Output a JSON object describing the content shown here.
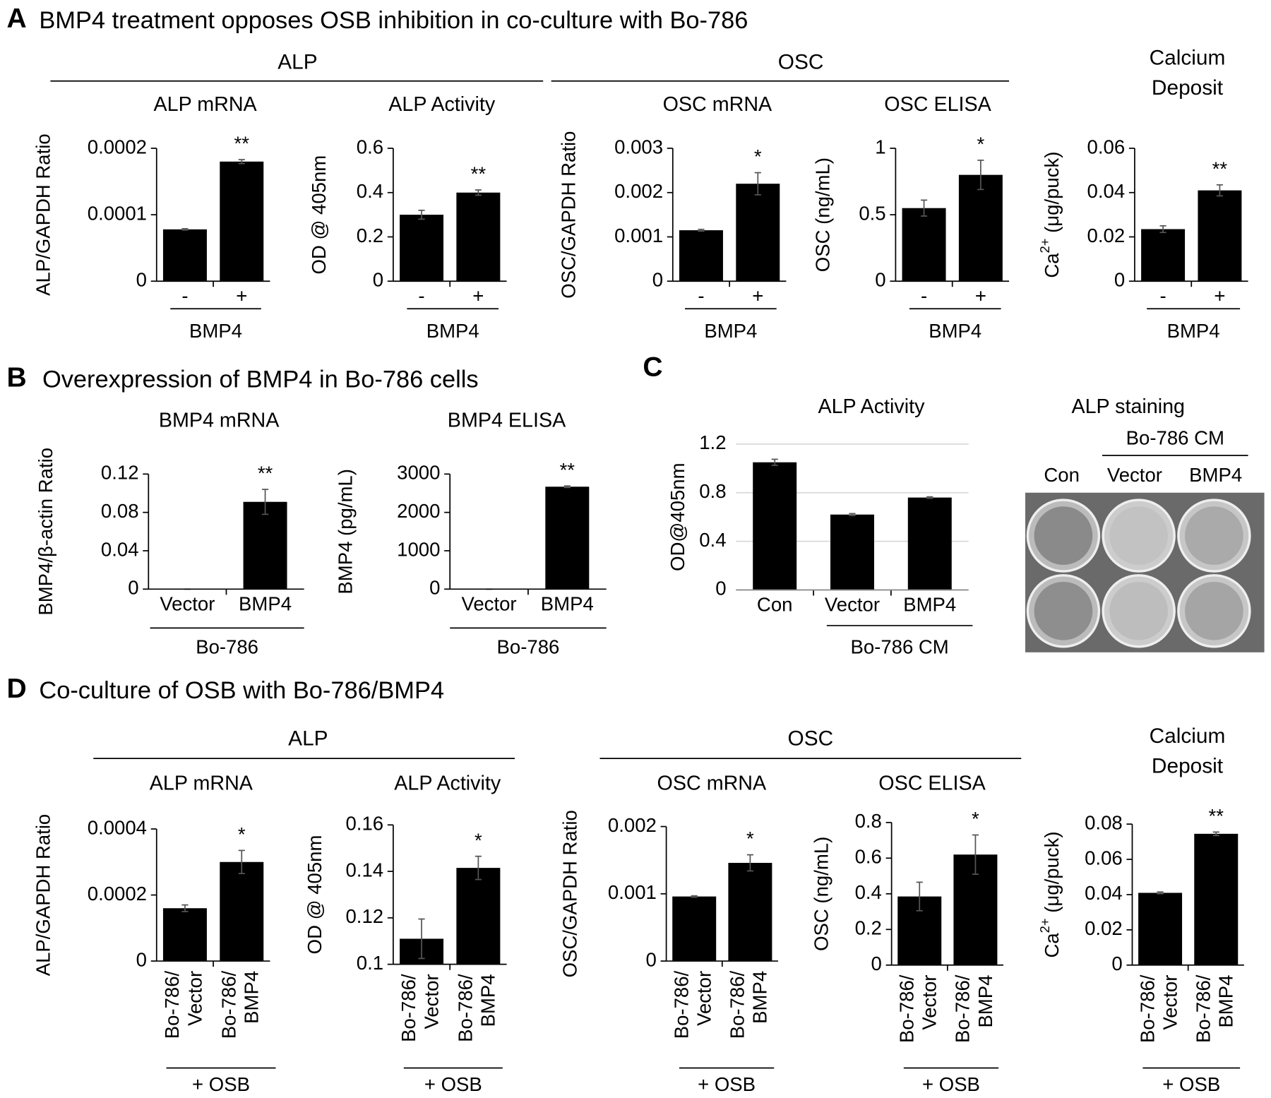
{
  "panels": [
    {
      "letter": "A",
      "title": "BMP4 treatment opposes OSB inhibition in co-culture with Bo-786"
    },
    {
      "letter": "B",
      "title": "Overexpression of BMP4 in Bo-786 cells"
    },
    {
      "letter": "C"
    },
    {
      "letter": "D",
      "title": "Co-culture of OSB with Bo-786/BMP4"
    }
  ],
  "headers": [
    {
      "lines": [
        "ALP"
      ]
    },
    {
      "lines": [
        "OSC"
      ]
    },
    {
      "lines": [
        "Calcium",
        "Deposit"
      ]
    },
    {
      "lines": [
        "ALP"
      ]
    },
    {
      "lines": [
        "OSC"
      ]
    },
    {
      "lines": [
        "Calcium",
        "Deposit"
      ]
    }
  ],
  "photo": {
    "title": "ALP staining",
    "group": "Bo-786 CM",
    "labels": [
      "Con",
      "Vector",
      "BMP4"
    ]
  },
  "chart_data": [
    {
      "type": "bar",
      "title": "ALP mRNA",
      "ylabel": "ALP/GAPDH Ratio",
      "categories": [
        "-",
        "+"
      ],
      "group": "BMP4",
      "values": [
        7.8e-05,
        0.00018
      ],
      "errors": [
        1e-06,
        3e-06
      ],
      "significance": [
        null,
        "**"
      ],
      "ylim": [
        0,
        0.0002
      ],
      "yticks": [
        0,
        0.0001,
        0.0002
      ],
      "color": "#000000",
      "grid": false
    },
    {
      "type": "bar",
      "title": "ALP Activity",
      "ylabel": "OD @ 405nm",
      "categories": [
        "-",
        "+"
      ],
      "group": "BMP4",
      "values": [
        0.3,
        0.4
      ],
      "errors": [
        0.02,
        0.012
      ],
      "significance": [
        null,
        "**"
      ],
      "ylim": [
        0,
        0.6
      ],
      "yticks": [
        0,
        0.2,
        0.4,
        0.6
      ],
      "color": "#000000",
      "grid": false
    },
    {
      "type": "bar",
      "title": "OSC mRNA",
      "ylabel": "OSC/GAPDH Ratio",
      "categories": [
        "-",
        "+"
      ],
      "group": "BMP4",
      "values": [
        0.00115,
        0.0022
      ],
      "errors": [
        2e-05,
        0.00025
      ],
      "significance": [
        null,
        "*"
      ],
      "ylim": [
        0,
        0.003
      ],
      "yticks": [
        0,
        0.001,
        0.002,
        0.003
      ],
      "color": "#000000",
      "grid": false
    },
    {
      "type": "bar",
      "title": "OSC ELISA",
      "ylabel": "OSC (ng/mL)",
      "categories": [
        "-",
        "+"
      ],
      "group": "BMP4",
      "values": [
        0.55,
        0.8
      ],
      "errors": [
        0.06,
        0.11
      ],
      "significance": [
        null,
        "*"
      ],
      "ylim": [
        0,
        1
      ],
      "yticks": [
        0,
        0.5,
        1
      ],
      "color": "#000000",
      "grid": false
    },
    {
      "type": "bar",
      "ylabel": [
        {
          "text": "Ca"
        },
        {
          "text": "2+",
          "sup": true
        },
        {
          "text": " (μg/puck)"
        }
      ],
      "categories": [
        "-",
        "+"
      ],
      "group": "BMP4",
      "values": [
        0.0235,
        0.041
      ],
      "errors": [
        0.0015,
        0.0025
      ],
      "significance": [
        null,
        "**"
      ],
      "ylim": [
        0,
        0.06
      ],
      "yticks": [
        0,
        0.02,
        0.04,
        0.06
      ],
      "color": "#000000",
      "grid": false
    },
    {
      "type": "bar",
      "title": "BMP4 mRNA",
      "ylabel": "BMP4/β-actin Ratio",
      "categories": [
        "Vector",
        "BMP4"
      ],
      "group": "Bo-786",
      "values": [
        0,
        0.091
      ],
      "errors": [
        0,
        0.013
      ],
      "significance": [
        null,
        "**"
      ],
      "ylim": [
        0,
        0.12
      ],
      "yticks": [
        0,
        0.04,
        0.08,
        0.12
      ],
      "color": "#000000",
      "grid": false
    },
    {
      "type": "bar",
      "title": "BMP4 ELISA",
      "ylabel": "BMP4 (pg/mL)",
      "categories": [
        "Vector",
        "BMP4"
      ],
      "group": "Bo-786",
      "values": [
        0,
        2670
      ],
      "errors": [
        0,
        20
      ],
      "significance": [
        null,
        "**"
      ],
      "ylim": [
        0,
        3000
      ],
      "yticks": [
        0,
        1000,
        2000,
        3000
      ],
      "color": "#000000",
      "grid": false
    },
    {
      "type": "bar",
      "title": "ALP Activity",
      "ylabel": "OD@405nm",
      "categories": [
        "Con",
        "Vector",
        "BMP4"
      ],
      "group": "Bo-786 CM",
      "values": [
        1.05,
        0.62,
        0.76
      ],
      "errors": [
        0.025,
        0.008,
        0.006
      ],
      "significance": [
        null,
        null,
        null
      ],
      "ylim": [
        0,
        1.2
      ],
      "yticks": [
        0,
        0.4,
        0.8,
        1.2
      ],
      "color": "#000000",
      "grid": true
    },
    {
      "type": "bar",
      "title": "ALP mRNA",
      "ylabel": "ALP/GAPDH Ratio",
      "categories": [
        [
          "Bo-786/",
          "Vector"
        ],
        [
          "Bo-786/",
          "BMP4"
        ]
      ],
      "group": "+ OSB",
      "values": [
        0.00016,
        0.0003
      ],
      "errors": [
        1e-05,
        3.5e-05
      ],
      "significance": [
        null,
        "*"
      ],
      "ylim": [
        0,
        0.0004
      ],
      "yticks": [
        0,
        0.0002,
        0.0004
      ],
      "color": "#000000",
      "grid": false
    },
    {
      "type": "bar",
      "title": "ALP Activity",
      "ylabel": "OD @ 405nm",
      "categories": [
        [
          "Bo-786/",
          "Vector"
        ],
        [
          "Bo-786/",
          "BMP4"
        ]
      ],
      "group": "+ OSB",
      "values": [
        0.111,
        0.1415
      ],
      "errors": [
        0.0085,
        0.005
      ],
      "significance": [
        null,
        "*"
      ],
      "ylim": [
        0.1,
        0.16
      ],
      "yticks": [
        0.1,
        0.12,
        0.14,
        0.16
      ],
      "color": "#000000",
      "grid": false
    },
    {
      "type": "bar",
      "title": "OSC mRNA",
      "ylabel": "OSC/GAPDH Ratio",
      "categories": [
        [
          "Bo-786/",
          "Vector"
        ],
        [
          "Bo-786/",
          "BMP4"
        ]
      ],
      "group": "+ OSB",
      "values": [
        0.00096,
        0.00146
      ],
      "errors": [
        1e-05,
        0.00012
      ],
      "significance": [
        null,
        "*"
      ],
      "ylim": [
        0,
        0.002
      ],
      "yticks": [
        0,
        0.001,
        0.002
      ],
      "color": "#000000",
      "grid": false
    },
    {
      "type": "bar",
      "title": "OSC ELISA",
      "ylabel": "OSC (ng/mL)",
      "categories": [
        [
          "Bo-786/",
          "Vector"
        ],
        [
          "Bo-786/",
          "BMP4"
        ]
      ],
      "group": "+ OSB",
      "values": [
        0.385,
        0.62
      ],
      "errors": [
        0.08,
        0.11
      ],
      "significance": [
        null,
        "*"
      ],
      "ylim": [
        0,
        0.8
      ],
      "yticks": [
        0,
        0.2,
        0.4,
        0.6,
        0.8
      ],
      "color": "#000000",
      "grid": false
    },
    {
      "type": "bar",
      "ylabel": [
        {
          "text": "Ca"
        },
        {
          "text": "2+",
          "sup": true
        },
        {
          "text": " (μg/puck)"
        }
      ],
      "categories": [
        [
          "Bo-786/",
          "Vector"
        ],
        [
          "Bo-786/",
          "BMP4"
        ]
      ],
      "group": "+ OSB",
      "values": [
        0.041,
        0.0745
      ],
      "errors": [
        0.0005,
        0.001
      ],
      "significance": [
        null,
        "**"
      ],
      "ylim": [
        0,
        0.08
      ],
      "yticks": [
        0,
        0.02,
        0.04,
        0.06,
        0.08
      ],
      "color": "#000000",
      "grid": false
    }
  ]
}
